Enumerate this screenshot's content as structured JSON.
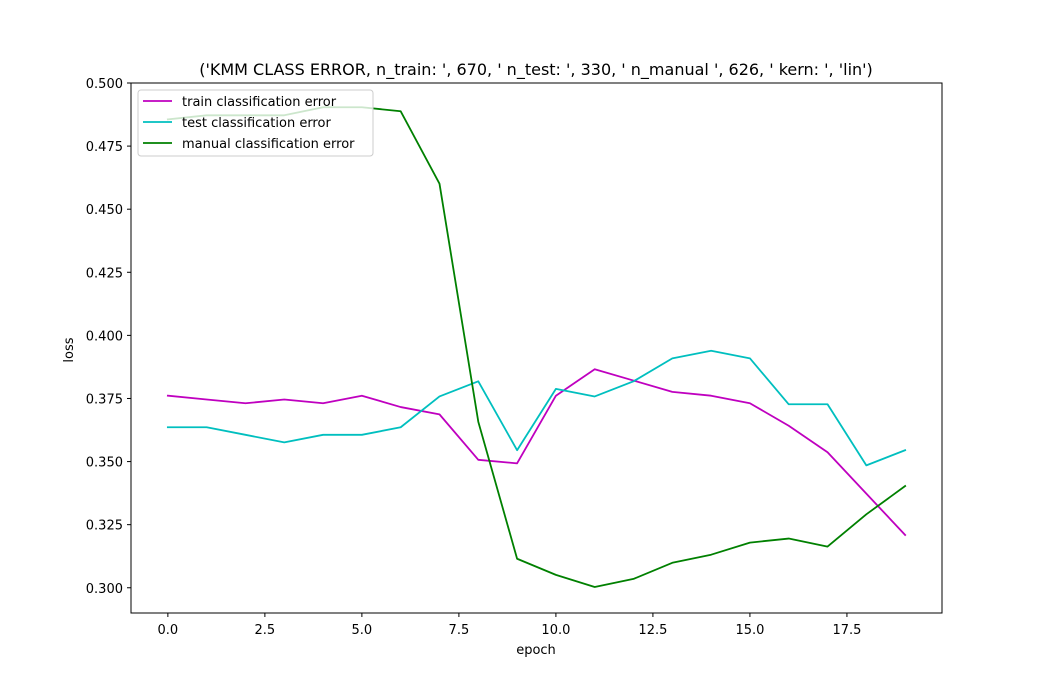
{
  "chart_data": {
    "type": "line",
    "title": "('KMM CLASS ERROR, n_train: ', 670, ' n_test: ', 330, ' n_manual ', 626, ' kern: ', 'lin')",
    "xlabel": "epoch",
    "ylabel": "loss",
    "xlim": [
      -0.95,
      19.95
    ],
    "ylim": [
      0.29,
      0.5
    ],
    "xticks": [
      0.0,
      2.5,
      5.0,
      7.5,
      10.0,
      12.5,
      15.0,
      17.5
    ],
    "xtick_labels": [
      "0.0",
      "2.5",
      "5.0",
      "7.5",
      "10.0",
      "12.5",
      "15.0",
      "17.5"
    ],
    "yticks": [
      0.3,
      0.325,
      0.35,
      0.375,
      0.4,
      0.425,
      0.45,
      0.475,
      0.5
    ],
    "ytick_labels": [
      "0.300",
      "0.325",
      "0.350",
      "0.375",
      "0.400",
      "0.425",
      "0.450",
      "0.475",
      "0.500"
    ],
    "grid": false,
    "legend_position": "top-left",
    "x": [
      0,
      1,
      2,
      3,
      4,
      5,
      6,
      7,
      8,
      9,
      10,
      11,
      12,
      13,
      14,
      15,
      16,
      17,
      18,
      19
    ],
    "series": [
      {
        "name": "train classification error",
        "color": "#bf00bf",
        "values": [
          0.3761,
          0.3746,
          0.3731,
          0.3746,
          0.3731,
          0.3761,
          0.3716,
          0.3687,
          0.3507,
          0.3493,
          0.3761,
          0.3866,
          0.3821,
          0.3776,
          0.3761,
          0.3731,
          0.3642,
          0.3537,
          0.3373,
          0.3209
        ]
      },
      {
        "name": "test classification error",
        "color": "#00bfbf",
        "values": [
          0.3636,
          0.3636,
          0.3606,
          0.3576,
          0.3606,
          0.3606,
          0.3636,
          0.3758,
          0.3818,
          0.3545,
          0.3788,
          0.3758,
          0.3818,
          0.3909,
          0.3939,
          0.3909,
          0.3727,
          0.3727,
          0.3485,
          0.3545
        ]
      },
      {
        "name": "manual classification error",
        "color": "#008000",
        "values": [
          0.4856,
          0.4872,
          0.4872,
          0.4872,
          0.4904,
          0.4904,
          0.4888,
          0.4601,
          0.3658,
          0.3115,
          0.3051,
          0.3003,
          0.3035,
          0.3099,
          0.3131,
          0.3179,
          0.3195,
          0.3163,
          0.3291,
          0.3403
        ]
      }
    ]
  }
}
